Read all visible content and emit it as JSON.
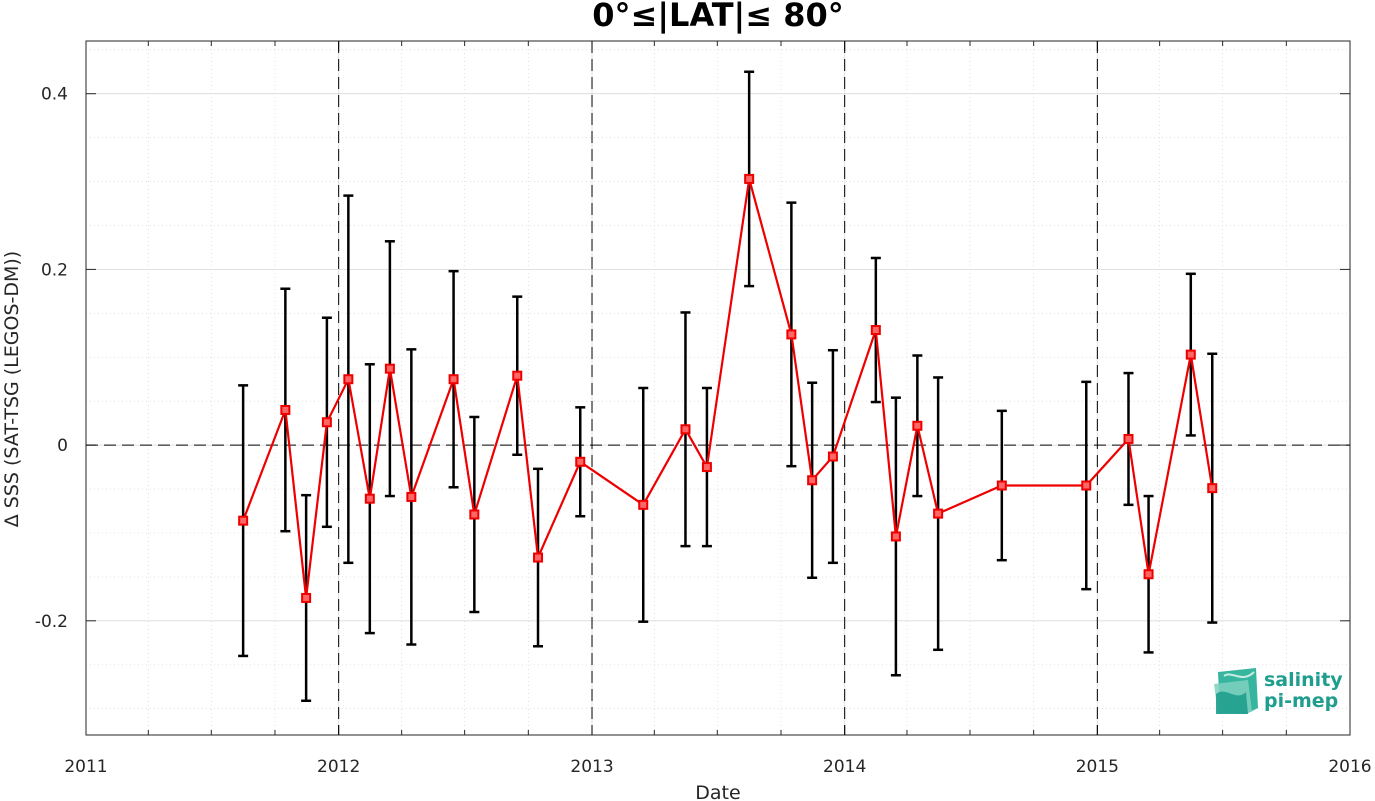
{
  "chart_data": {
    "type": "line",
    "title": "0°≤|LAT|≤ 80°",
    "xlabel": "Date",
    "ylabel": "Δ SSS (SAT-TSG (LEGOS-DM))",
    "xlim": [
      "2011-01-01",
      "2016-01-01"
    ],
    "ylim": [
      -0.33,
      0.46
    ],
    "x_ticks": [
      "2011",
      "2012",
      "2013",
      "2014",
      "2015",
      "2016"
    ],
    "y_ticks": [
      -0.2,
      0,
      0.2,
      0.4
    ],
    "y_tick_labels": [
      "-0.2",
      "0",
      "0.2",
      "0.4"
    ],
    "grid": true,
    "reference_lines": {
      "horizontal_zero": true,
      "vertical_year_boundaries": [
        "2012-01-01",
        "2013-01-01",
        "2014-01-01",
        "2015-01-01"
      ]
    },
    "colors": {
      "series": "#ee0000",
      "errorbars": "#000000"
    },
    "series": [
      {
        "marker": "square",
        "x": [
          "2011-08-16",
          "2011-10-16",
          "2011-11-15",
          "2011-12-15",
          "2012-01-15",
          "2012-02-15",
          "2012-03-15",
          "2012-04-15",
          "2012-06-15",
          "2012-07-15",
          "2012-09-15",
          "2012-10-15",
          "2012-12-15",
          "2013-03-16",
          "2013-05-16",
          "2013-06-16",
          "2013-08-16",
          "2013-10-16",
          "2013-11-15",
          "2013-12-15",
          "2014-02-15",
          "2014-03-16",
          "2014-04-16",
          "2014-05-16",
          "2014-08-16",
          "2014-12-16",
          "2015-02-15",
          "2015-03-16",
          "2015-05-16",
          "2015-06-16"
        ],
        "y": [
          -0.086,
          0.04,
          -0.174,
          0.026,
          0.075,
          -0.061,
          0.087,
          -0.059,
          0.075,
          -0.079,
          0.079,
          -0.128,
          -0.019,
          -0.068,
          0.018,
          -0.025,
          0.303,
          0.126,
          -0.04,
          -0.013,
          0.131,
          -0.104,
          0.022,
          -0.078,
          -0.046,
          -0.046,
          0.007,
          -0.147,
          0.103,
          -0.049
        ],
        "err": [
          0.154,
          0.138,
          0.117,
          0.119,
          0.209,
          0.153,
          0.145,
          0.168,
          0.123,
          0.111,
          0.09,
          0.101,
          0.062,
          0.133,
          0.133,
          0.09,
          0.122,
          0.15,
          0.111,
          0.121,
          0.082,
          0.158,
          0.08,
          0.155,
          0.085,
          0.118,
          0.075,
          0.089,
          0.092,
          0.153
        ]
      }
    ]
  },
  "logo": {
    "line1": "salinity",
    "line2": "pi-mep",
    "color": "#1f9e8e"
  }
}
